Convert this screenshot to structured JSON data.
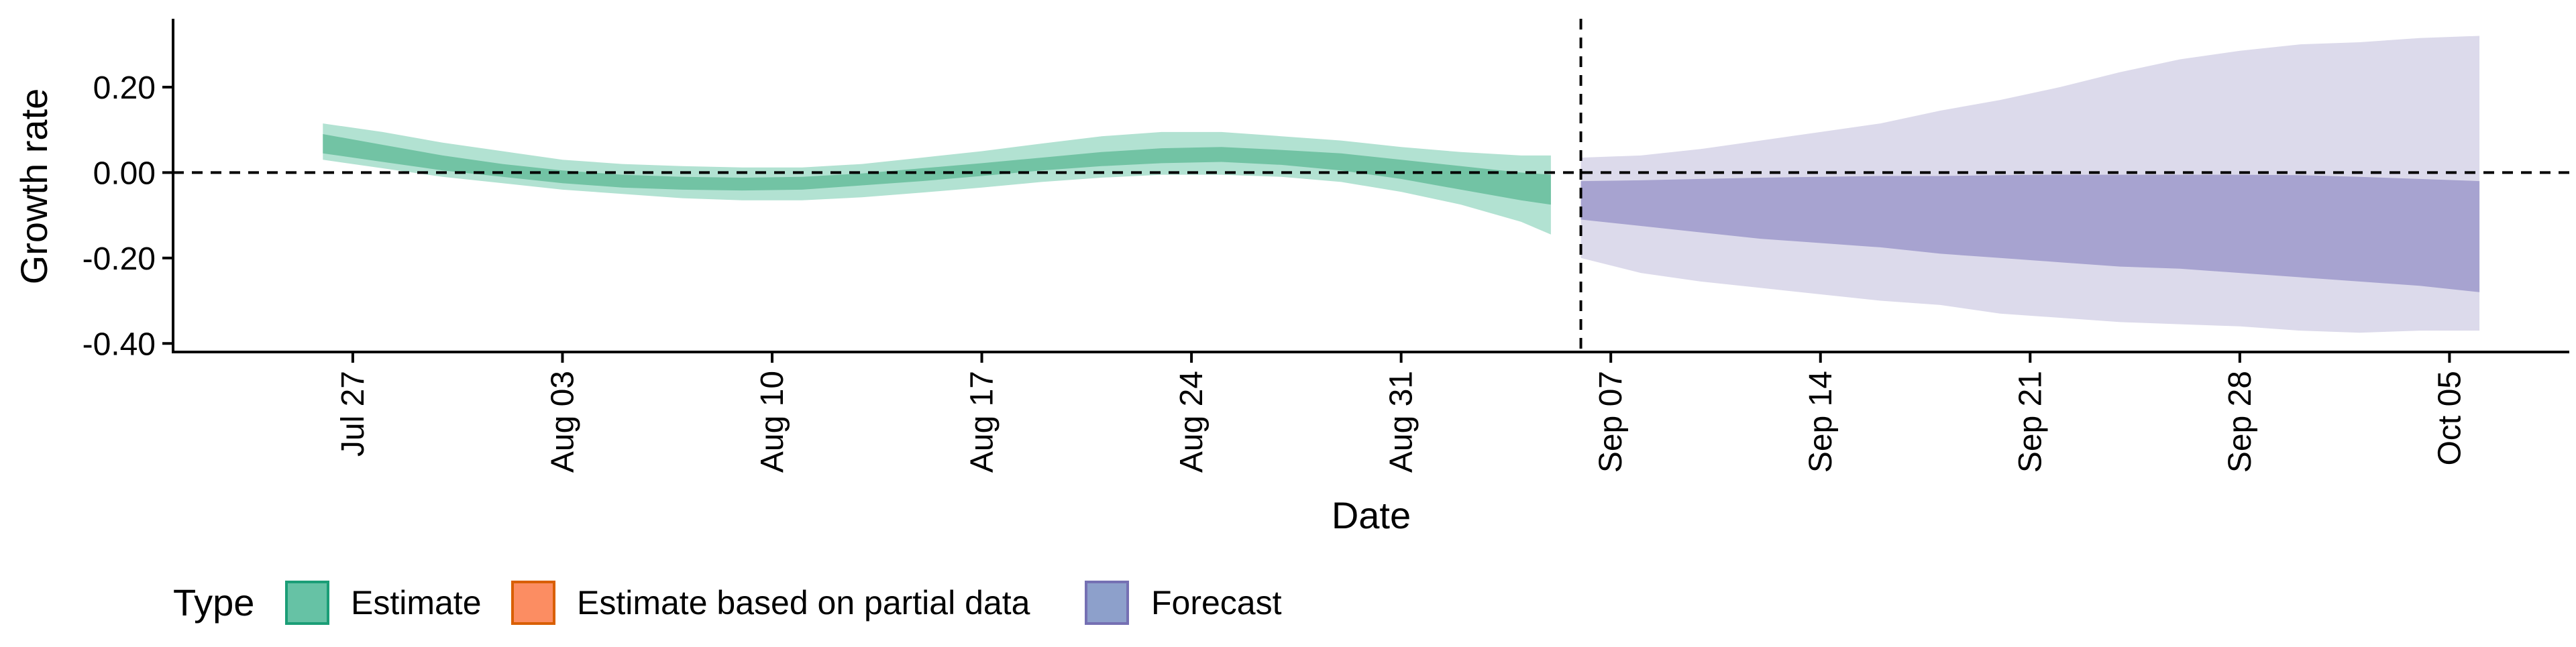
{
  "chart_data": {
    "type": "area",
    "title": "",
    "xlabel": "Date",
    "ylabel": "Growth rate",
    "x_ticks": [
      "Jul 27",
      "Aug 03",
      "Aug 10",
      "Aug 17",
      "Aug 24",
      "Aug 31",
      "Sep 07",
      "Sep 14",
      "Sep 21",
      "Sep 28",
      "Oct 05"
    ],
    "y_ticks": [
      "0.20",
      "0.00",
      "-0.20",
      "-0.40"
    ],
    "y_tick_values": [
      0.2,
      0.0,
      -0.2,
      -0.4
    ],
    "ylim": [
      -0.42,
      0.36
    ],
    "xlim": [
      "2020-07-21",
      "2020-10-09"
    ],
    "reference_lines": {
      "horizontal_y": 0.0,
      "vertical_date": "2020-09-06"
    },
    "grid": false,
    "legend": {
      "title": "Type",
      "placement": "bottom-left",
      "entries": [
        {
          "label": "Estimate",
          "fill": "#66c2a5",
          "stroke": "#1b9e77"
        },
        {
          "label": "Estimate based on partial data",
          "fill": "#fc8d62",
          "stroke": "#d95f02"
        },
        {
          "label": "Forecast",
          "fill": "#8da0cb",
          "stroke": "#7570b3"
        }
      ]
    },
    "colors": {
      "estimate_outer": "#b2e2d2",
      "estimate_inner": "#72c3a4",
      "forecast_outer": "#dcdaeb",
      "forecast_inner": "#a7a3d0"
    },
    "series": [
      {
        "name": "Estimate",
        "x": [
          "2020-07-26",
          "2020-07-28",
          "2020-07-30",
          "2020-08-01",
          "2020-08-03",
          "2020-08-05",
          "2020-08-07",
          "2020-08-09",
          "2020-08-11",
          "2020-08-13",
          "2020-08-15",
          "2020-08-17",
          "2020-08-19",
          "2020-08-21",
          "2020-08-23",
          "2020-08-25",
          "2020-08-27",
          "2020-08-29",
          "2020-08-31",
          "2020-09-02",
          "2020-09-04",
          "2020-09-05"
        ],
        "outer_upper": [
          0.115,
          0.095,
          0.07,
          0.05,
          0.03,
          0.02,
          0.015,
          0.012,
          0.012,
          0.02,
          0.035,
          0.05,
          0.068,
          0.085,
          0.095,
          0.095,
          0.085,
          0.075,
          0.06,
          0.048,
          0.04,
          0.04
        ],
        "inner_upper": [
          0.09,
          0.065,
          0.04,
          0.02,
          0.005,
          -0.005,
          -0.01,
          -0.012,
          -0.01,
          -0.002,
          0.01,
          0.022,
          0.035,
          0.048,
          0.057,
          0.06,
          0.053,
          0.045,
          0.03,
          0.015,
          0.0,
          -0.005
        ],
        "inner_lower": [
          0.045,
          0.025,
          0.005,
          -0.01,
          -0.025,
          -0.035,
          -0.04,
          -0.042,
          -0.04,
          -0.03,
          -0.02,
          -0.008,
          0.005,
          0.015,
          0.022,
          0.025,
          0.018,
          0.005,
          -0.015,
          -0.04,
          -0.065,
          -0.075
        ],
        "outer_lower": [
          0.03,
          0.01,
          -0.01,
          -0.025,
          -0.04,
          -0.05,
          -0.06,
          -0.065,
          -0.065,
          -0.058,
          -0.047,
          -0.035,
          -0.022,
          -0.012,
          -0.005,
          -0.005,
          -0.01,
          -0.022,
          -0.045,
          -0.075,
          -0.115,
          -0.145
        ]
      },
      {
        "name": "Forecast",
        "x": [
          "2020-09-06",
          "2020-09-08",
          "2020-09-10",
          "2020-09-12",
          "2020-09-14",
          "2020-09-16",
          "2020-09-18",
          "2020-09-20",
          "2020-09-22",
          "2020-09-24",
          "2020-09-26",
          "2020-09-28",
          "2020-09-30",
          "2020-10-02",
          "2020-10-04",
          "2020-10-06"
        ],
        "outer_upper": [
          0.035,
          0.04,
          0.055,
          0.075,
          0.095,
          0.115,
          0.145,
          0.17,
          0.2,
          0.235,
          0.265,
          0.285,
          0.3,
          0.305,
          0.315,
          0.32
        ],
        "inner_upper": [
          -0.02,
          -0.018,
          -0.015,
          -0.012,
          -0.01,
          -0.008,
          -0.008,
          -0.006,
          -0.005,
          -0.005,
          -0.005,
          -0.005,
          -0.006,
          -0.01,
          -0.015,
          -0.02
        ],
        "inner_lower": [
          -0.11,
          -0.125,
          -0.14,
          -0.155,
          -0.165,
          -0.175,
          -0.19,
          -0.2,
          -0.21,
          -0.22,
          -0.225,
          -0.235,
          -0.245,
          -0.255,
          -0.265,
          -0.28
        ],
        "outer_lower": [
          -0.2,
          -0.235,
          -0.255,
          -0.27,
          -0.285,
          -0.3,
          -0.31,
          -0.33,
          -0.34,
          -0.35,
          -0.355,
          -0.36,
          -0.37,
          -0.375,
          -0.37,
          -0.37
        ]
      }
    ]
  }
}
